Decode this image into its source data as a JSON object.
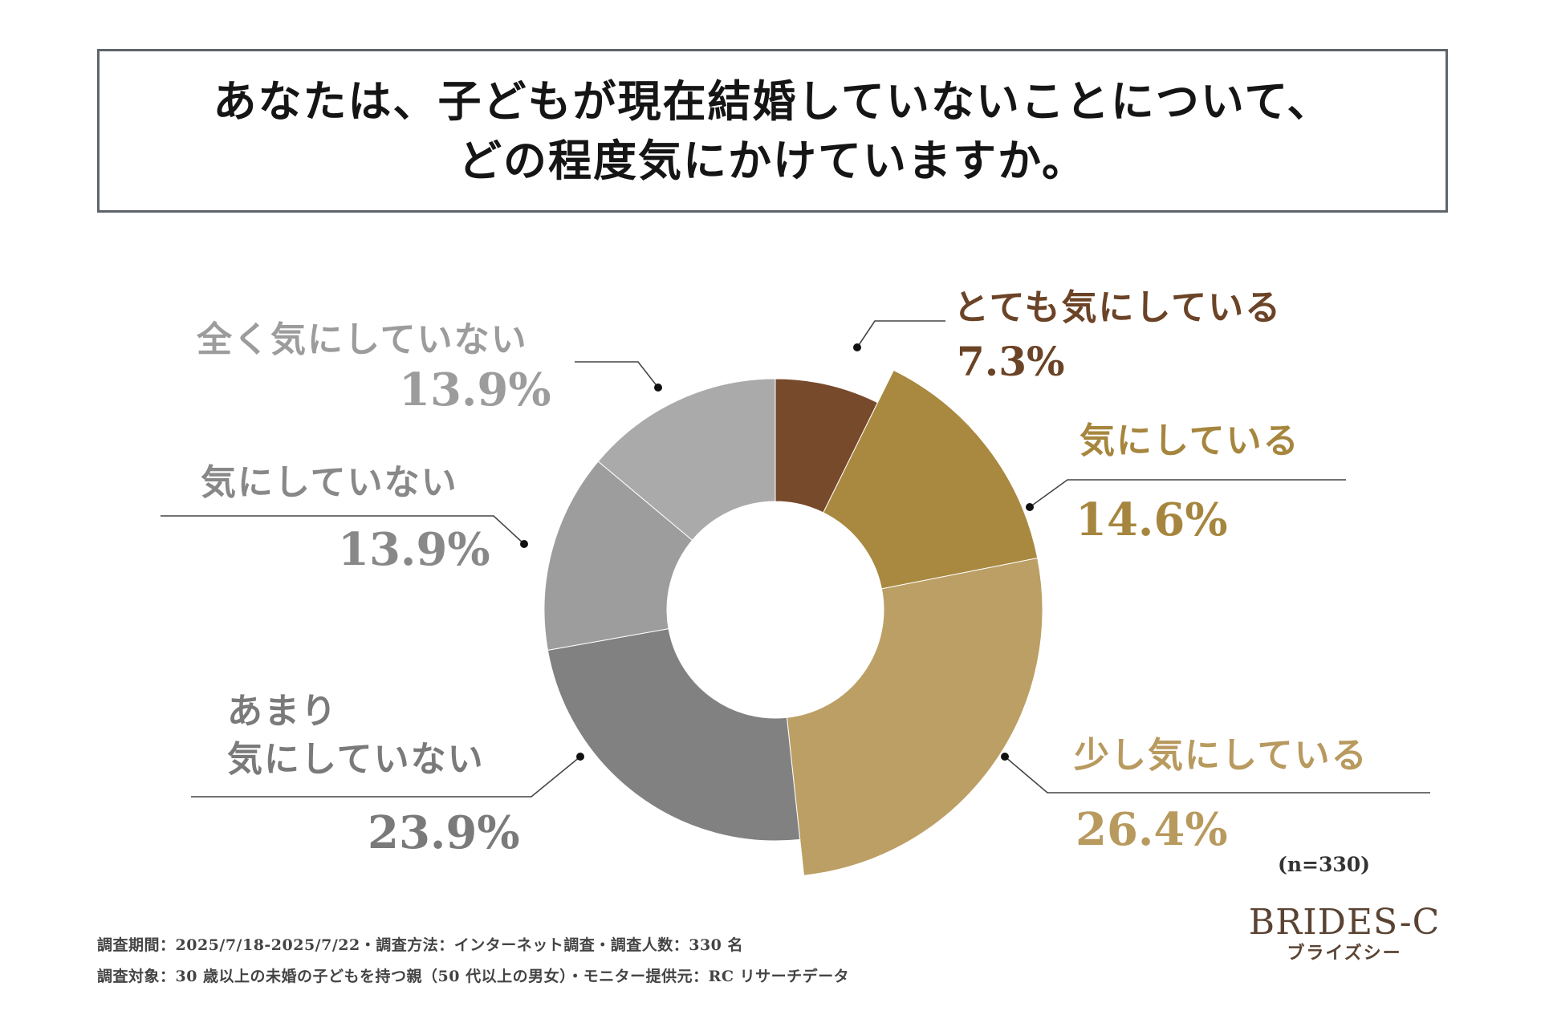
{
  "title": {
    "line1": "あなたは、子どもが現在結婚していないことについて、",
    "line2": "どの程度気にかけていますか。"
  },
  "chart_data": {
    "type": "pie",
    "donut": true,
    "categories": [
      "とても気にしている",
      "気にしている",
      "少し気にしている",
      "あまり気にしていない",
      "気にしていない",
      "全く気にしていない"
    ],
    "values": [
      7.3,
      14.6,
      26.4,
      23.9,
      13.9,
      13.9
    ],
    "value_labels": [
      "7.3%",
      "14.6%",
      "26.4%",
      "23.9%",
      "13.9%",
      "13.9%"
    ],
    "colors": [
      "#774a2c",
      "#a98940",
      "#bc9f65",
      "#818181",
      "#9d9d9d",
      "#aaaaaa"
    ],
    "highlight_exploded": [
      1,
      2
    ],
    "n_label": "(n=330)"
  },
  "footer": {
    "line1": "調査期間：2025/7/18-2025/7/22・調査方法：インターネット調査・調査人数：330 名",
    "line2": "調査対象：30 歳以上の未婚の子どもを持つ親（50 代以上の男女）・モニター提供元：RC リサーチデータ"
  },
  "logo": {
    "main": "BRIDES-C",
    "sub": "ブライズシー"
  }
}
